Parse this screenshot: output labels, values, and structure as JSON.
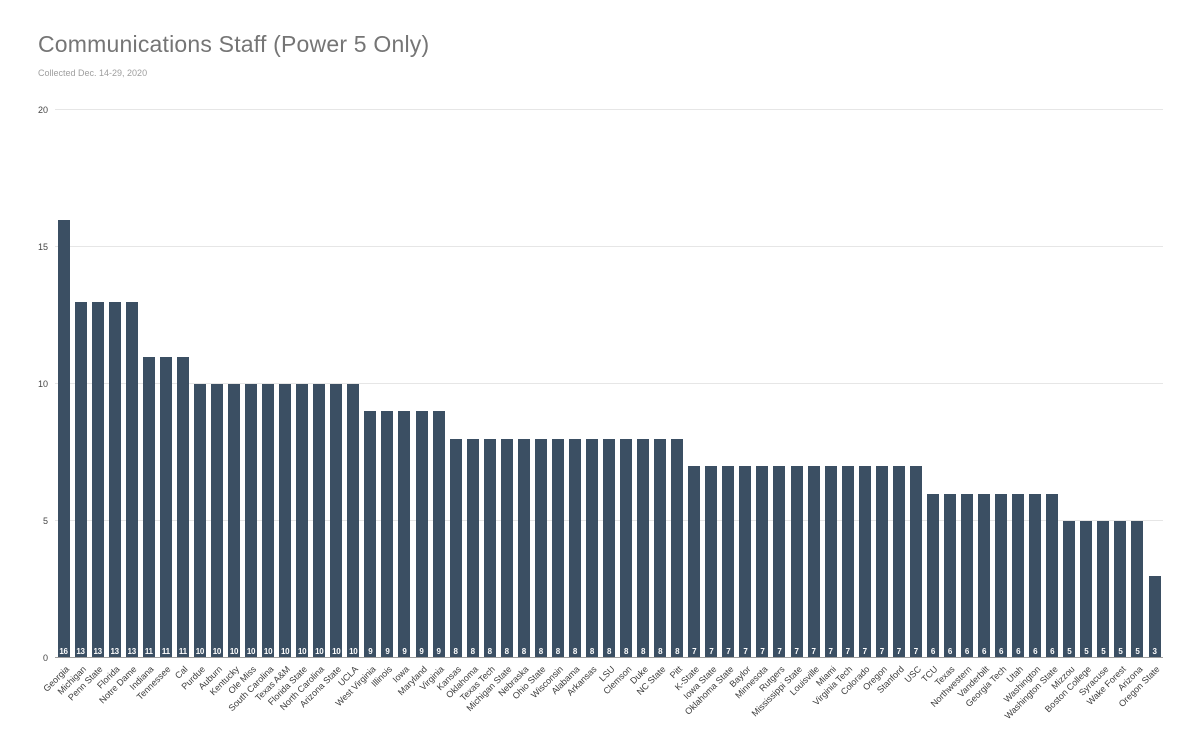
{
  "chart_data": {
    "type": "bar",
    "title": "Communications Staff (Power 5 Only)",
    "subtitle": "Collected Dec. 14-29, 2020",
    "xlabel": "",
    "ylabel": "",
    "ylim": [
      0,
      20
    ],
    "yticks": [
      0,
      5,
      10,
      15,
      20
    ],
    "grid": true,
    "legend": "none",
    "value_labels_shown": true,
    "categories": [
      "Georgia",
      "Michigan",
      "Penn State",
      "Florida",
      "Notre Dame",
      "Indiana",
      "Tennessee",
      "Cal",
      "Purdue",
      "Auburn",
      "Kentucky",
      "Ole Miss",
      "South Carolina",
      "Texas A&M",
      "Florida State",
      "North Carolina",
      "Arizona State",
      "UCLA",
      "West Virginia",
      "Illinois",
      "Iowa",
      "Maryland",
      "Virginia",
      "Kansas",
      "Oklahoma",
      "Texas Tech",
      "Michigan State",
      "Nebraska",
      "Ohio State",
      "Wisconsin",
      "Alabama",
      "Arkansas",
      "LSU",
      "Clemson",
      "Duke",
      "NC State",
      "Pitt",
      "K-State",
      "Iowa State",
      "Oklahoma State",
      "Baylor",
      "Minnesota",
      "Rutgers",
      "Mississippi State",
      "Louisville",
      "Miami",
      "Virginia Tech",
      "Colorado",
      "Oregon",
      "Stanford",
      "USC",
      "TCU",
      "Texas",
      "Northwestern",
      "Vanderbilt",
      "Georgia Tech",
      "Utah",
      "Washington",
      "Washington State",
      "Mizzou",
      "Boston College",
      "Syracuse",
      "Wake Forest",
      "Arizona",
      "Oregon State"
    ],
    "values": [
      16,
      13,
      13,
      13,
      13,
      11,
      11,
      11,
      10,
      10,
      10,
      10,
      10,
      10,
      10,
      10,
      10,
      10,
      9,
      9,
      9,
      9,
      9,
      8,
      8,
      8,
      8,
      8,
      8,
      8,
      8,
      8,
      8,
      8,
      8,
      8,
      8,
      7,
      7,
      7,
      7,
      7,
      7,
      7,
      7,
      7,
      7,
      7,
      7,
      7,
      7,
      6,
      6,
      6,
      6,
      6,
      6,
      6,
      6,
      5,
      5,
      5,
      5,
      5,
      3
    ],
    "colors": {
      "bar": "#3b4f63",
      "title": "#757575",
      "subtitle": "#9e9e9e",
      "axis": "#444444",
      "xlabel": "#3c3c3c",
      "grid": "#e6e6e6",
      "baseline": "#9e9e9e",
      "value": "#ffffff"
    }
  }
}
